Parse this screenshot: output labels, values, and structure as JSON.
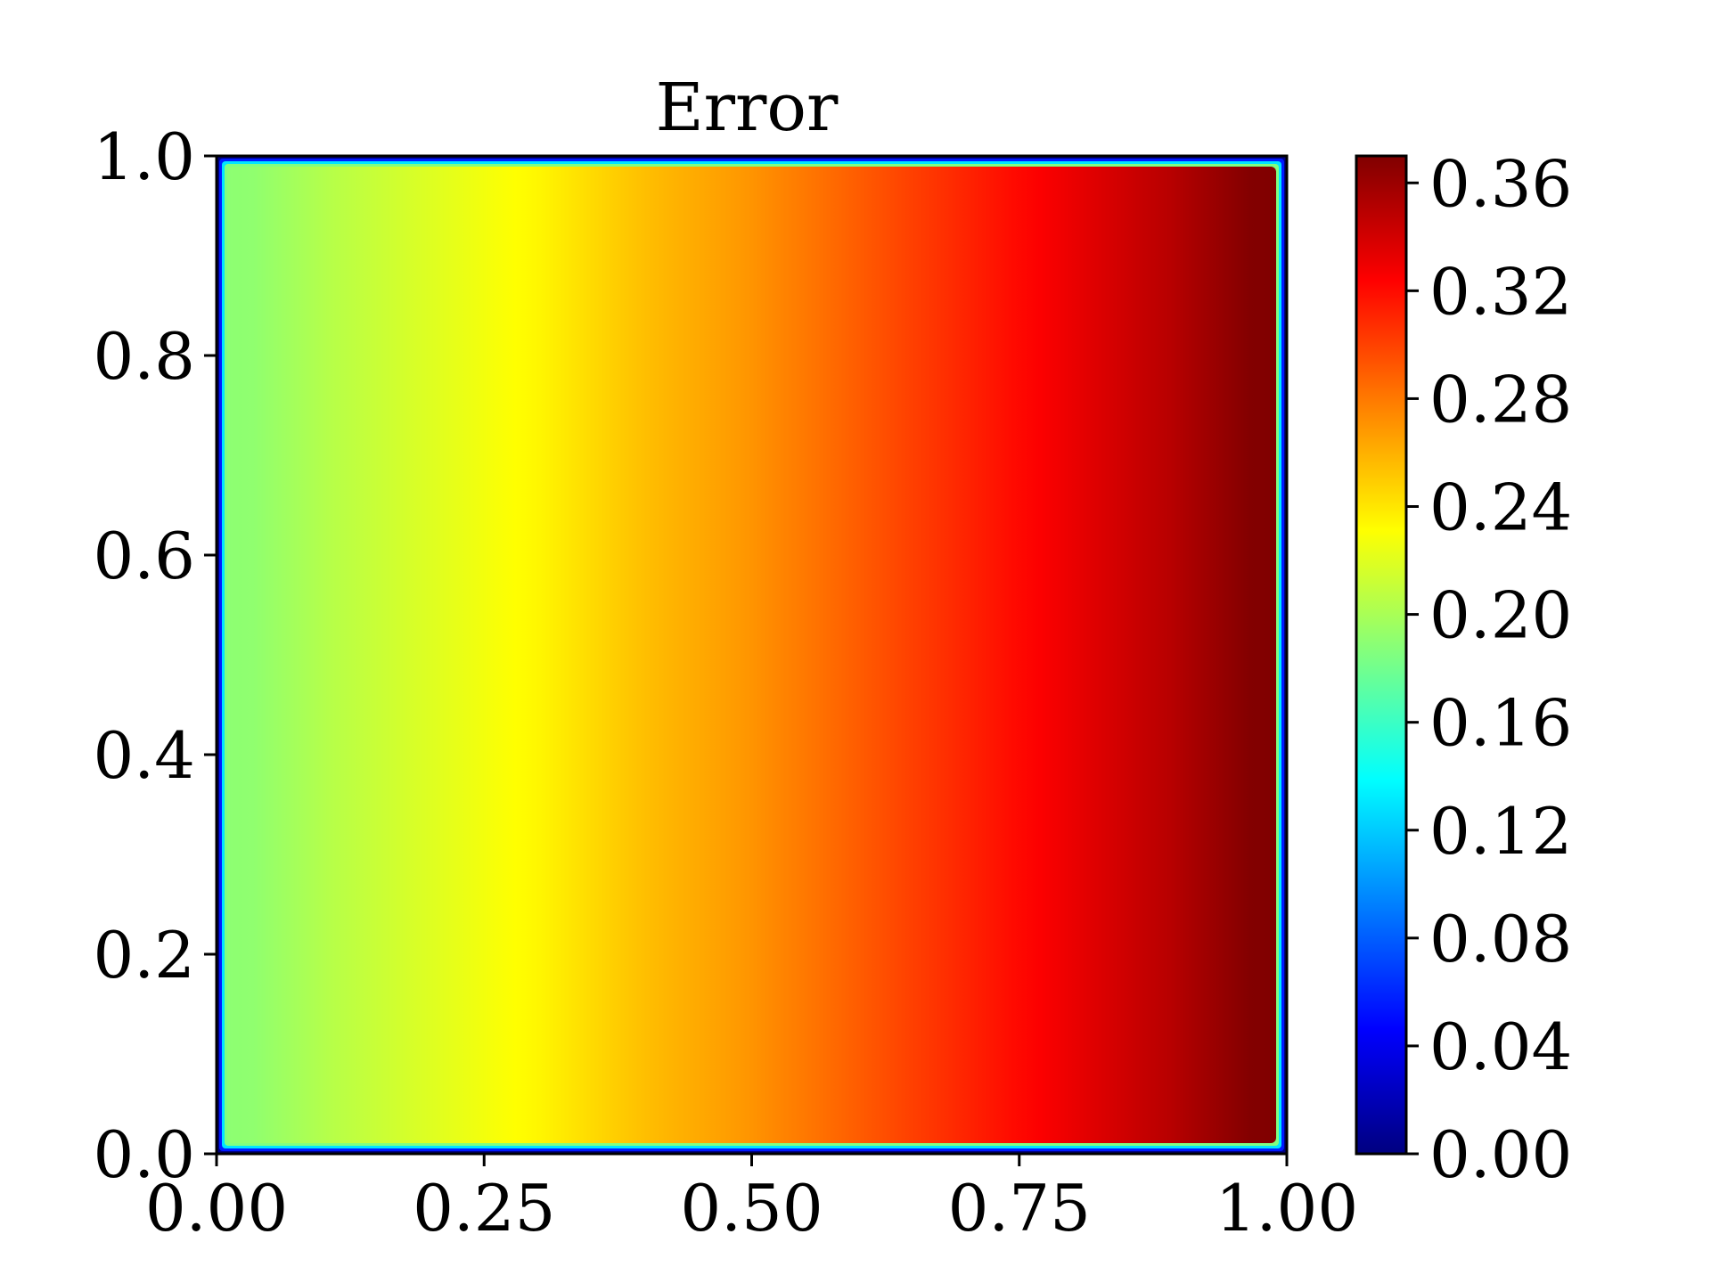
{
  "chart_data": {
    "type": "heatmap",
    "title": "Error",
    "xlabel": "",
    "ylabel": "",
    "xlim": [
      0.0,
      1.0
    ],
    "ylim": [
      0.0,
      1.0
    ],
    "x_ticks": [
      "0.00",
      "0.25",
      "0.50",
      "0.75",
      "1.00"
    ],
    "y_ticks": [
      "0.0",
      "0.2",
      "0.4",
      "0.6",
      "0.8",
      "1.0"
    ],
    "colorbar": {
      "range": [
        0.0,
        0.37
      ],
      "ticks": [
        "0.00",
        "0.04",
        "0.08",
        "0.12",
        "0.16",
        "0.20",
        "0.24",
        "0.28",
        "0.32",
        "0.36"
      ],
      "colormap": "jet"
    },
    "field": {
      "description_of_values": "error increases roughly linearly from left to right, about 0.19 near x=0 to about 0.37 near x=1; drops to 0 at the domain boundary",
      "x": [
        0.02,
        0.1,
        0.2,
        0.3,
        0.4,
        0.5,
        0.6,
        0.7,
        0.8,
        0.9,
        0.98
      ],
      "values_at_mid_y": [
        0.19,
        0.205,
        0.22,
        0.235,
        0.255,
        0.27,
        0.29,
        0.31,
        0.33,
        0.35,
        0.37
      ],
      "boundary_value": 0.0
    },
    "grid": false
  }
}
